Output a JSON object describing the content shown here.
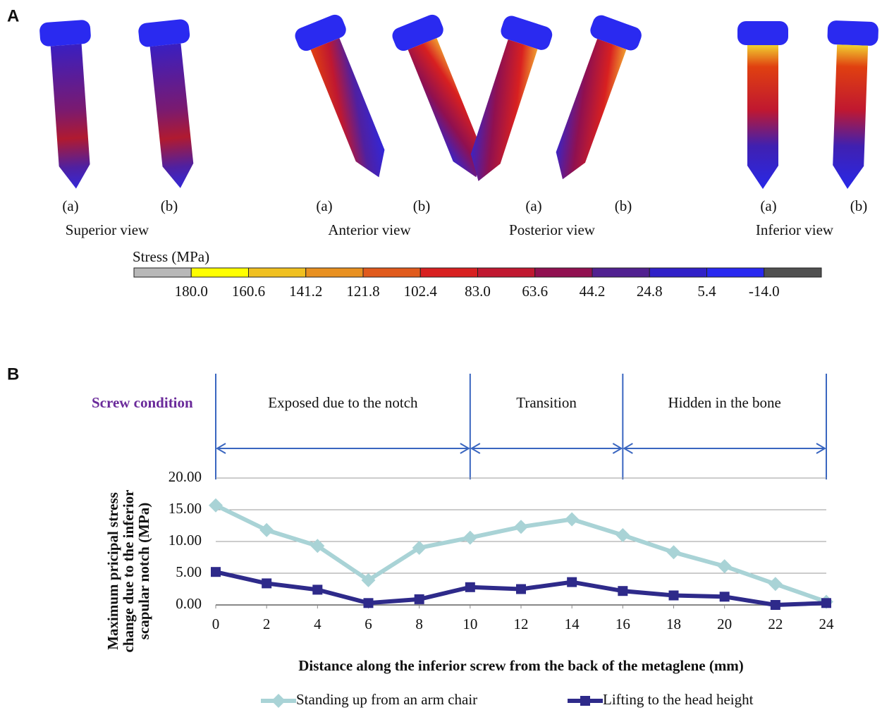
{
  "panel_a": {
    "label": "A",
    "views": [
      {
        "name": "Superior view",
        "items": [
          "(a)",
          "(b)"
        ]
      },
      {
        "name": "Anterior view",
        "items": [
          "(a)",
          "(b)"
        ]
      },
      {
        "name": "Posterior view",
        "items": [
          "(a)",
          "(b)"
        ]
      },
      {
        "name": "Inferior view",
        "items": [
          "(a)",
          "(b)"
        ]
      }
    ],
    "colorbar": {
      "title": "Stress (MPa)",
      "colors": [
        "#b8b8b8",
        "#ffff00",
        "#f0c020",
        "#e89020",
        "#e05a1c",
        "#d82020",
        "#c01830",
        "#901050",
        "#502090",
        "#3020c8",
        "#2828f0",
        "#505050"
      ],
      "labels": [
        "180.0",
        "160.6",
        "141.2",
        "121.8",
        "102.4",
        "83.0",
        "63.6",
        "44.2",
        "24.8",
        "5.4",
        "-14.0"
      ]
    }
  },
  "chart_data": {
    "type": "line",
    "panel_label": "B",
    "header_label": "Screw condition",
    "regions": [
      {
        "label": "Exposed due to the notch",
        "from": 0,
        "to": 10
      },
      {
        "label": "Transition",
        "from": 10,
        "to": 16
      },
      {
        "label": "Hidden in the bone",
        "from": 16,
        "to": 24
      }
    ],
    "x": [
      0,
      2,
      4,
      6,
      8,
      10,
      12,
      14,
      16,
      18,
      20,
      22,
      24
    ],
    "xlim": [
      0,
      24
    ],
    "xticks": [
      0,
      2,
      4,
      6,
      8,
      10,
      12,
      14,
      16,
      18,
      20,
      22,
      24
    ],
    "ylim": [
      0,
      20
    ],
    "yticks": [
      {
        "value": 0,
        "label": "0.00"
      },
      {
        "value": 5,
        "label": "5.00"
      },
      {
        "value": 10,
        "label": "10.00"
      },
      {
        "value": 15,
        "label": "15.00"
      },
      {
        "value": 20,
        "label": "20.00"
      }
    ],
    "grid": true,
    "xlabel": "Distance along the inferior screw from the back of the metaglene (mm)",
    "ylabel": [
      "Maximum pricipal stress",
      "change due to the inferior",
      "scapular notch (MPa)"
    ],
    "series": [
      {
        "name": "Standing up from an arm chair",
        "color": "#a9d3d6",
        "marker": "diamond",
        "values": [
          15.7,
          11.8,
          9.3,
          3.9,
          9.0,
          10.6,
          12.3,
          13.5,
          11.0,
          8.3,
          6.1,
          3.3,
          0.5
        ]
      },
      {
        "name": "Lifting to the head height",
        "color": "#2e2a8a",
        "marker": "square",
        "values": [
          5.2,
          3.4,
          2.4,
          0.3,
          0.9,
          2.8,
          2.5,
          3.6,
          2.2,
          1.5,
          1.3,
          0.0,
          0.3
        ]
      }
    ]
  }
}
